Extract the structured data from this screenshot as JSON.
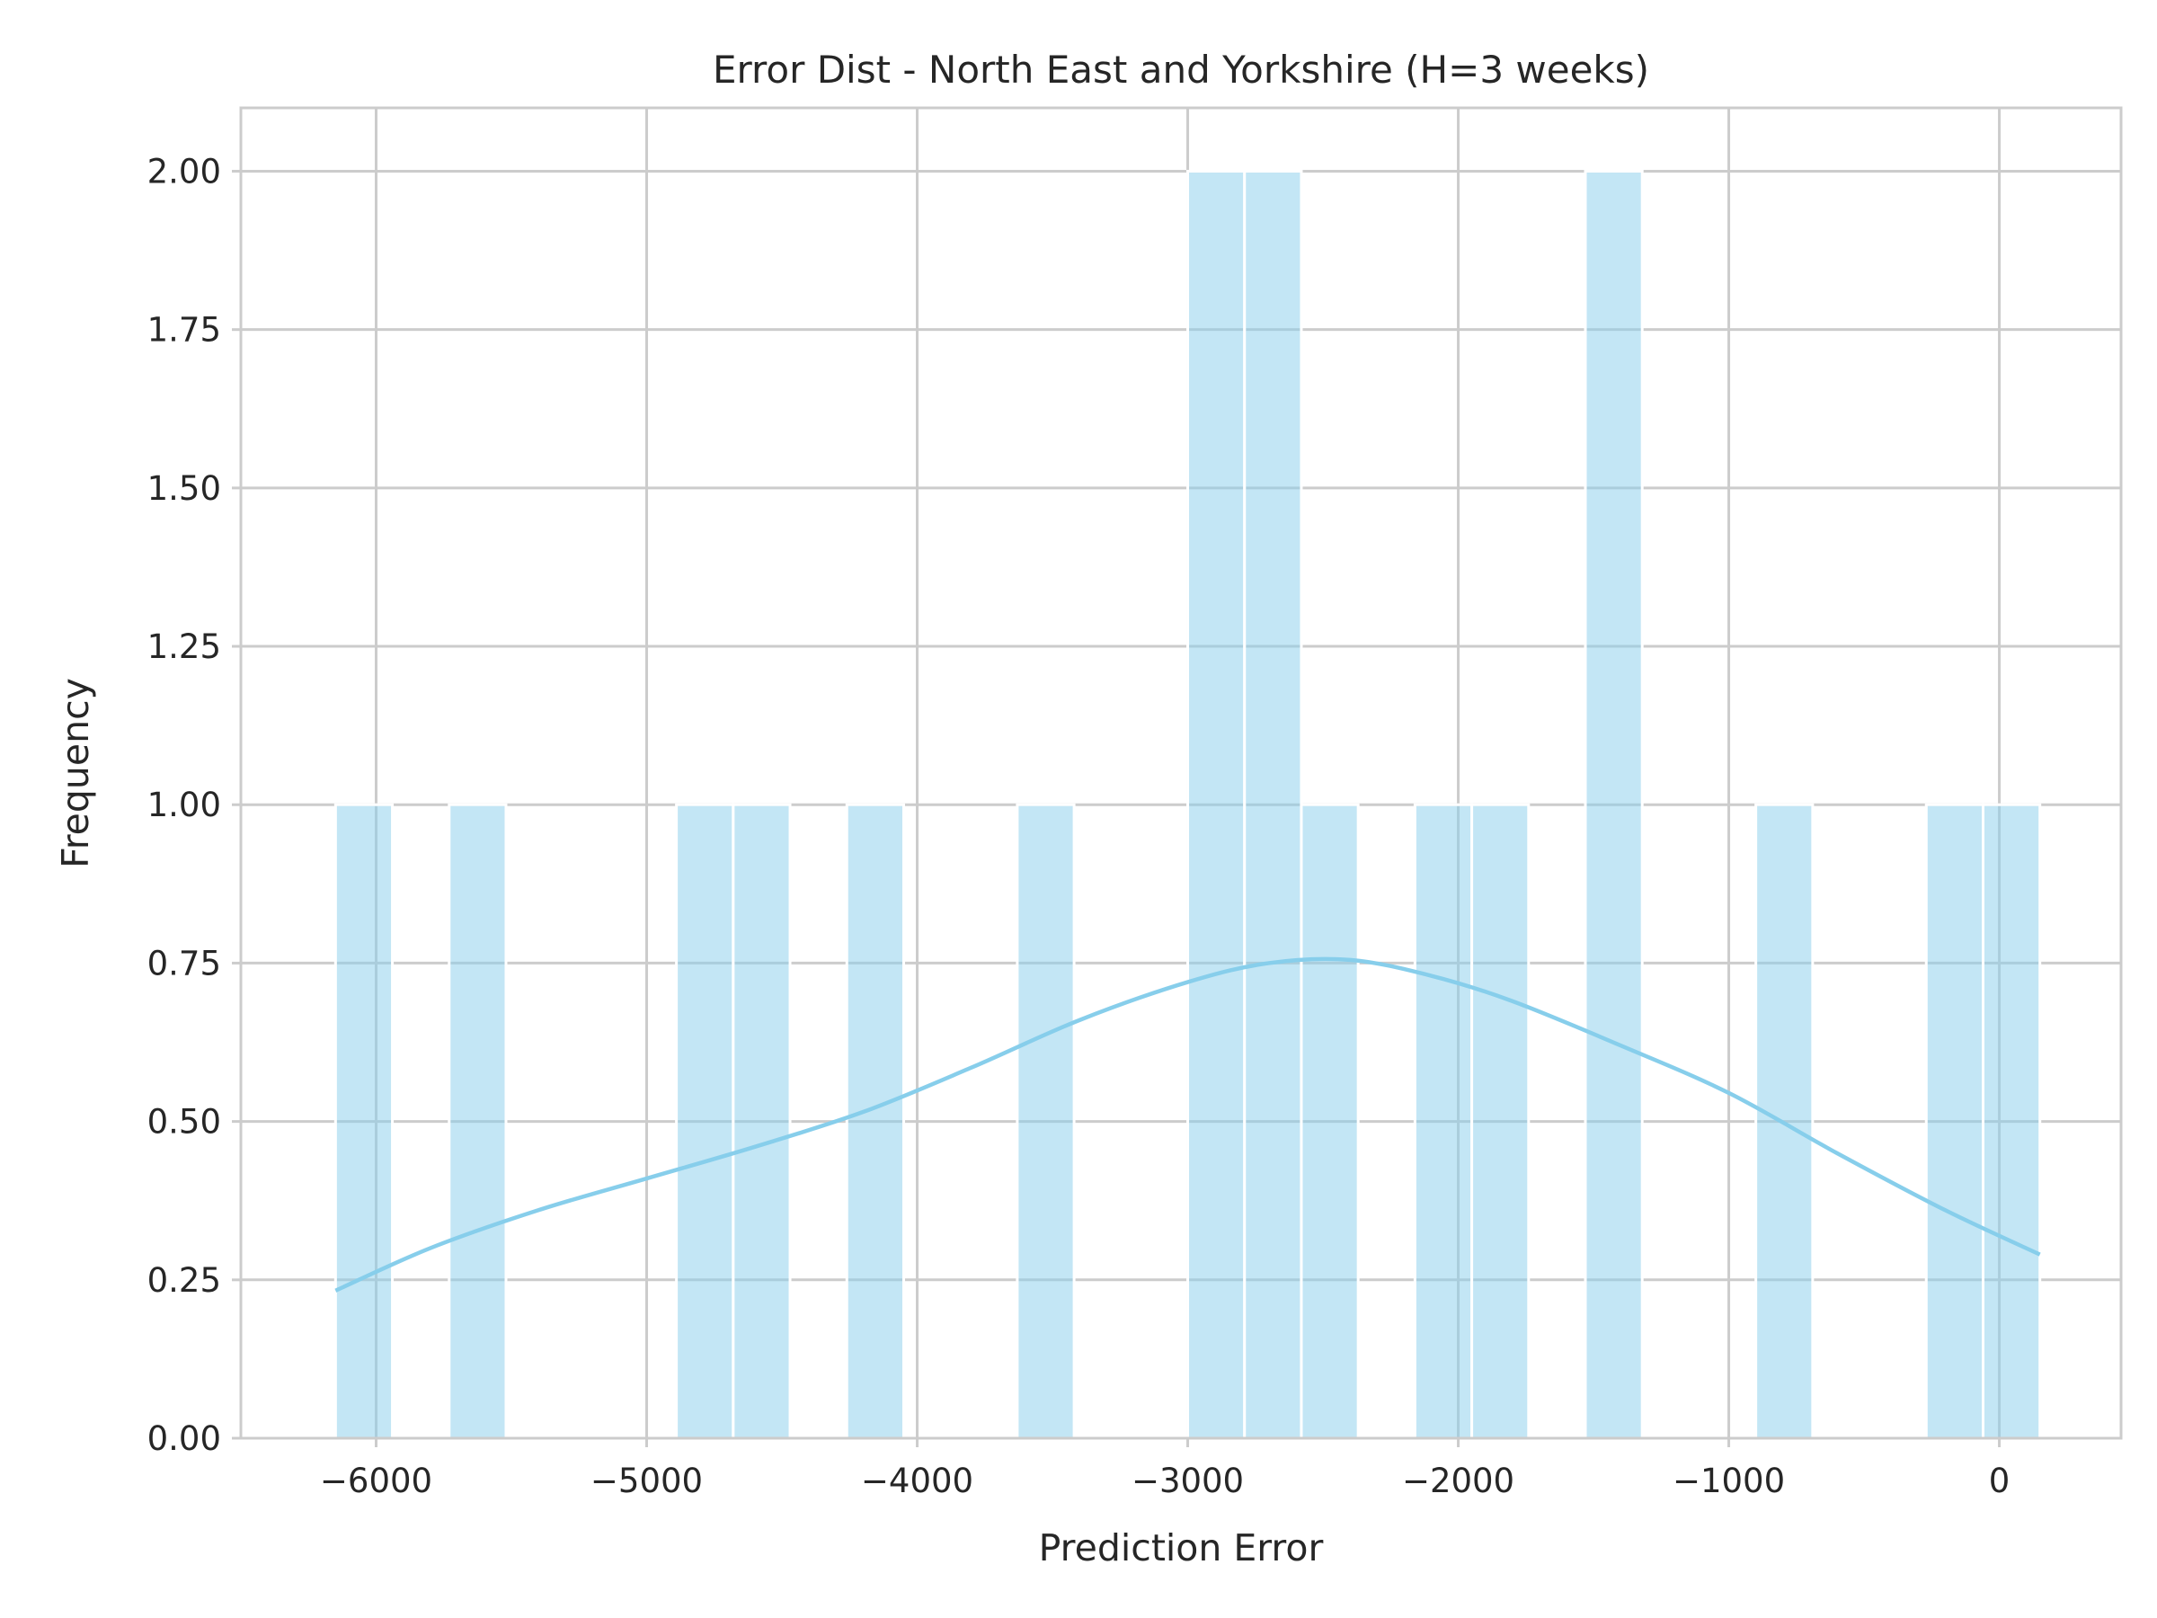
{
  "chart_data": {
    "type": "bar",
    "title": "Error Dist - North East and Yorkshire (H=3 weeks)",
    "xlabel": "Prediction Error",
    "ylabel": "Frequency",
    "xlim": [
      -6500,
      450
    ],
    "ylim": [
      0,
      2.1
    ],
    "grid": true,
    "xticks": [
      -6000,
      -5000,
      -4000,
      -3000,
      -2000,
      -1000,
      0
    ],
    "xtick_labels": [
      "−6000",
      "−5000",
      "−4000",
      "−3000",
      "−2000",
      "−1000",
      "0"
    ],
    "yticks": [
      0,
      0.25,
      0.5,
      0.75,
      1.0,
      1.25,
      1.5,
      1.75,
      2.0
    ],
    "ytick_labels": [
      "0.00",
      "0.25",
      "0.50",
      "0.75",
      "1.00",
      "1.25",
      "1.50",
      "1.75",
      "2.00"
    ],
    "bin_start": -6150,
    "bin_width": 210,
    "bins": [
      {
        "start": -6150,
        "count": 1
      },
      {
        "start": -5730,
        "count": 1
      },
      {
        "start": -4890,
        "count": 1
      },
      {
        "start": -4680,
        "count": 1
      },
      {
        "start": -4260,
        "count": 1
      },
      {
        "start": -3630,
        "count": 1
      },
      {
        "start": -3000,
        "count": 2
      },
      {
        "start": -2790,
        "count": 2
      },
      {
        "start": -2580,
        "count": 1
      },
      {
        "start": -2160,
        "count": 1
      },
      {
        "start": -1950,
        "count": 1
      },
      {
        "start": -1530,
        "count": 2
      },
      {
        "start": -900,
        "count": 1
      },
      {
        "start": -270,
        "count": 1
      },
      {
        "start": -60,
        "count": 1
      }
    ],
    "kde": {
      "x": [
        -6150,
        -5800,
        -5400,
        -5000,
        -4600,
        -4200,
        -3800,
        -3400,
        -3000,
        -2700,
        -2400,
        -2100,
        -1800,
        -1400,
        -1000,
        -600,
        -200,
        150
      ],
      "y": [
        0.233,
        0.3,
        0.36,
        0.41,
        0.46,
        0.515,
        0.585,
        0.66,
        0.72,
        0.75,
        0.755,
        0.73,
        0.69,
        0.62,
        0.545,
        0.45,
        0.36,
        0.29
      ]
    },
    "colors": {
      "bar": "#87ceeb",
      "kde": "#87ceeb",
      "grid": "#cccccc",
      "axes_edge": "#cccccc",
      "text": "#262626"
    }
  }
}
